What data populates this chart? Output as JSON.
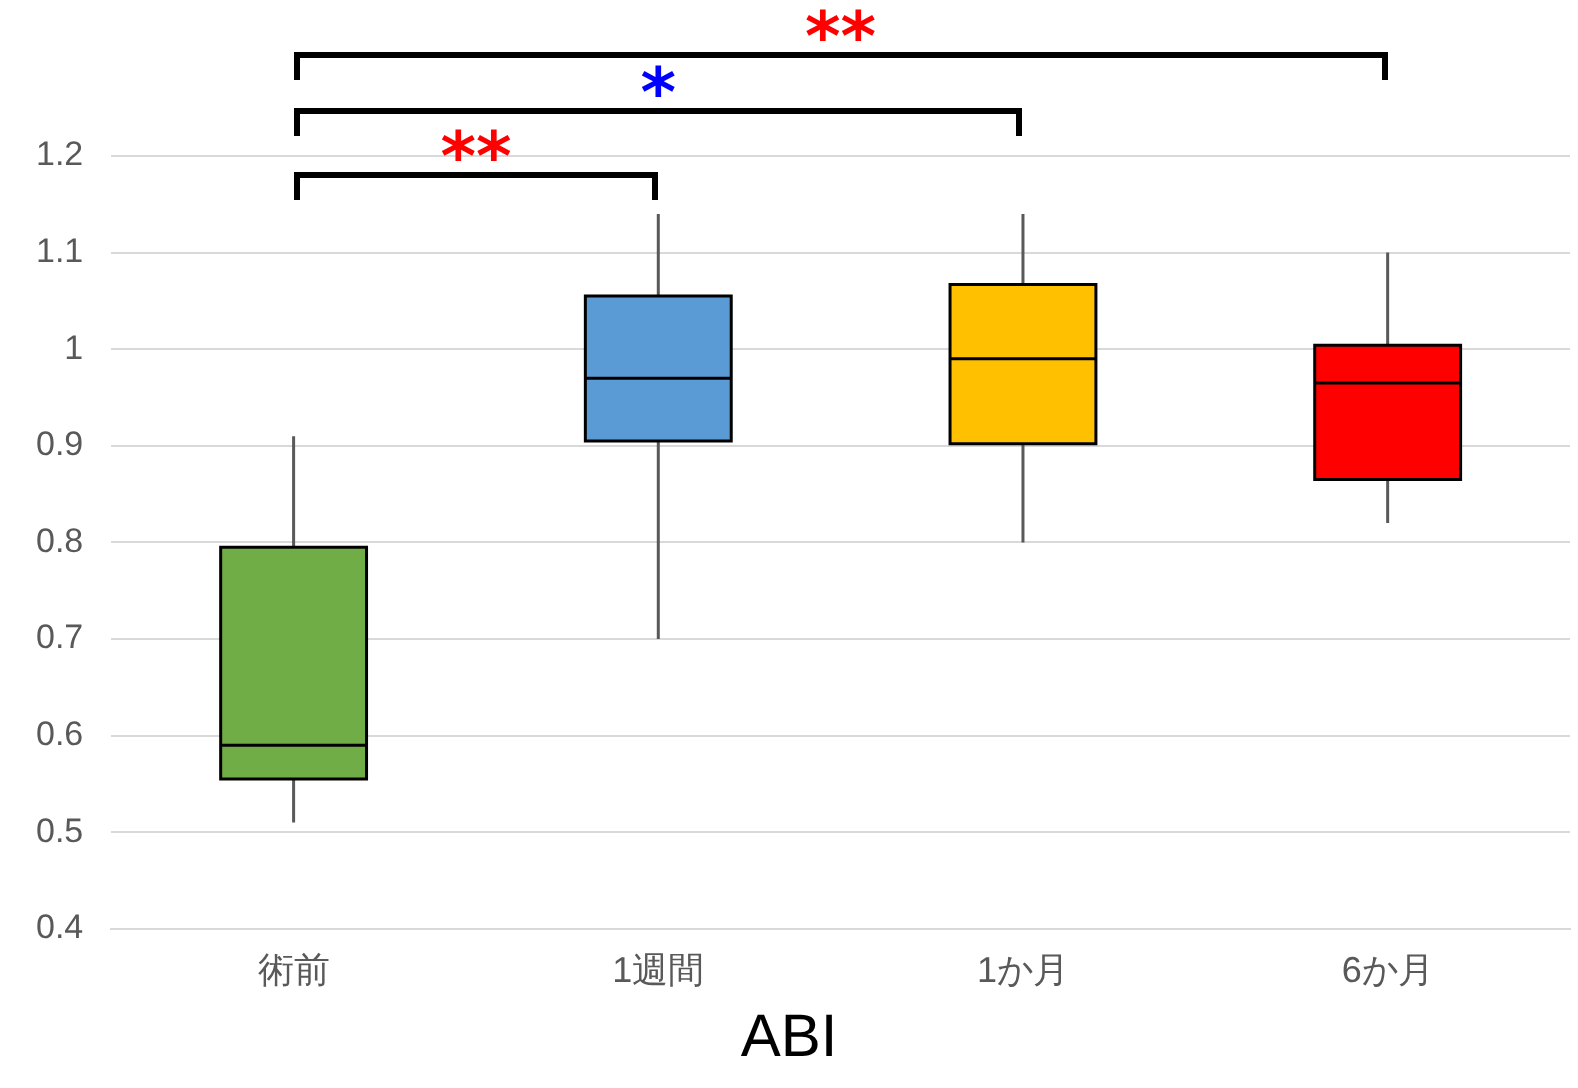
{
  "chart_data": {
    "type": "box",
    "xlabel": "ABI",
    "categories": [
      "術前",
      "1週間",
      "1か月",
      "6か月"
    ],
    "colors": [
      "#70ad47",
      "#5b9bd5",
      "#ffc000",
      "#ff0000"
    ],
    "boxes": [
      {
        "low": 0.51,
        "q1": 0.555,
        "median": 0.59,
        "q3": 0.795,
        "high": 0.91
      },
      {
        "low": 0.7,
        "q1": 0.905,
        "median": 0.97,
        "q3": 1.055,
        "high": 1.14
      },
      {
        "low": 0.8,
        "q1": 0.902,
        "median": 0.99,
        "q3": 1.067,
        "high": 1.14
      },
      {
        "low": 0.82,
        "q1": 0.865,
        "median": 0.965,
        "q3": 1.004,
        "high": 1.1
      }
    ],
    "ylim": [
      0.4,
      1.2
    ],
    "yticks": [
      0.4,
      0.5,
      0.6,
      0.7,
      0.8,
      0.9,
      1,
      1.1,
      1.2
    ],
    "grid": "y",
    "legend": false,
    "annotations": [
      "**",
      "*",
      "**"
    ]
  }
}
